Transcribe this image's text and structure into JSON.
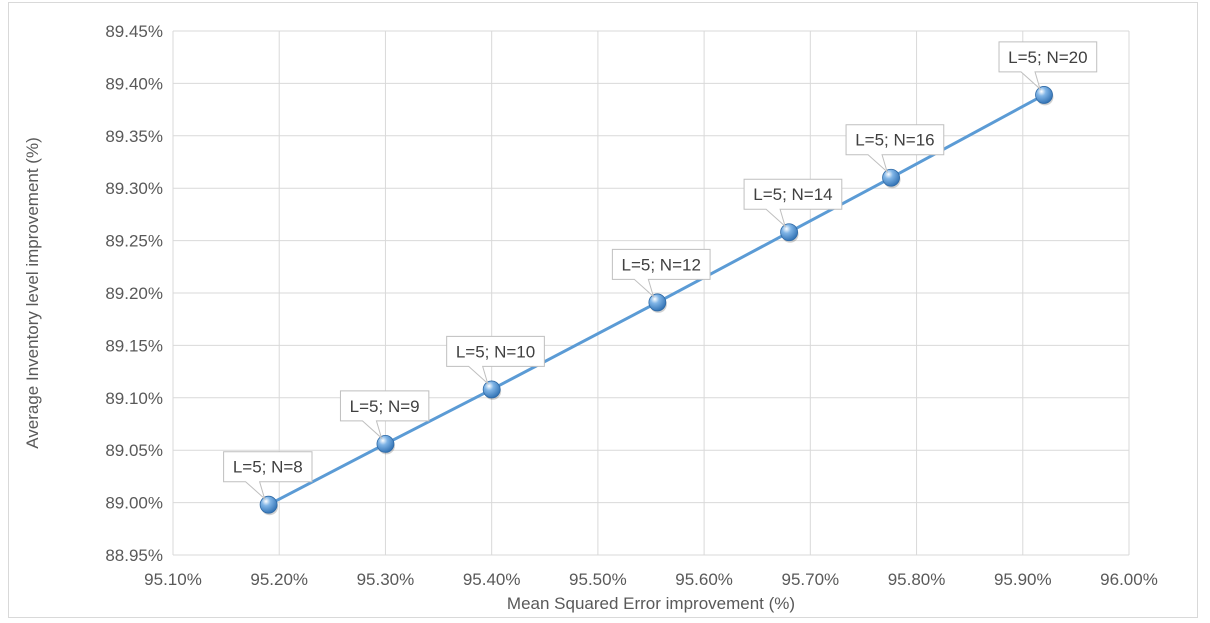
{
  "chart_data": {
    "type": "scatter",
    "title": "",
    "xlabel": "Mean Squared Error improvement (%)",
    "ylabel": "Average Inventory level improvement (%)",
    "xlim": [
      95.1,
      96.0
    ],
    "ylim": [
      88.95,
      89.45
    ],
    "x_ticks": [
      "95.10%",
      "95.20%",
      "95.30%",
      "95.40%",
      "95.50%",
      "95.60%",
      "95.70%",
      "95.80%",
      "95.90%",
      "96.00%"
    ],
    "y_ticks": [
      "89.45%",
      "89.40%",
      "89.35%",
      "89.30%",
      "89.25%",
      "89.20%",
      "89.15%",
      "89.10%",
      "89.05%",
      "89.00%",
      "88.95%"
    ],
    "grid": true,
    "legend": "none",
    "line_color": "#5b9bd5",
    "series": [
      {
        "x": [
          95.19,
          95.3,
          95.4,
          95.556,
          95.68,
          95.776,
          95.92
        ],
        "y": [
          88.998,
          89.056,
          89.108,
          89.191,
          89.258,
          89.31,
          89.389
        ],
        "labels": [
          "L=5; N=8",
          "L=5; N=9",
          "L=5; N=10",
          "L=5; N=12",
          "L=5; N=14",
          "L=5; N=16",
          "L=5; N=20"
        ]
      }
    ]
  }
}
